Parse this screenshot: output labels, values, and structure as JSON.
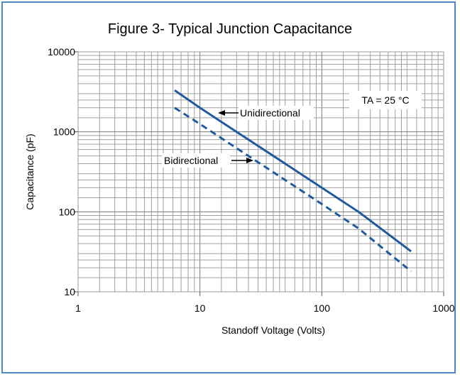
{
  "chart_data": {
    "type": "line",
    "title": "Figure 3- Typical Junction Capacitance",
    "xlabel": "Standoff Voltage (Volts)",
    "ylabel": "Capacitance (pF)",
    "xscale": "log",
    "yscale": "log",
    "xlim": [
      1,
      1000
    ],
    "ylim": [
      10,
      10000
    ],
    "grid": true,
    "x_ticks": [
      "1",
      "10",
      "100",
      "1000"
    ],
    "y_ticks": [
      "10",
      "100",
      "1000",
      "10000"
    ],
    "series": [
      {
        "name": "Unidirectional",
        "style": "solid",
        "color": "#1f5a9e",
        "x": [
          6.2,
          10,
          20,
          50,
          100,
          200,
          540
        ],
        "y": [
          3300,
          2000,
          1000,
          400,
          200,
          100,
          32
        ]
      },
      {
        "name": "Bidirectional",
        "style": "dashed",
        "color": "#1f5a9e",
        "x": [
          6.2,
          10,
          20,
          50,
          100,
          200,
          540
        ],
        "y": [
          2000,
          1250,
          625,
          250,
          125,
          62,
          18
        ]
      }
    ],
    "annotation": "TA = 25 °C"
  }
}
